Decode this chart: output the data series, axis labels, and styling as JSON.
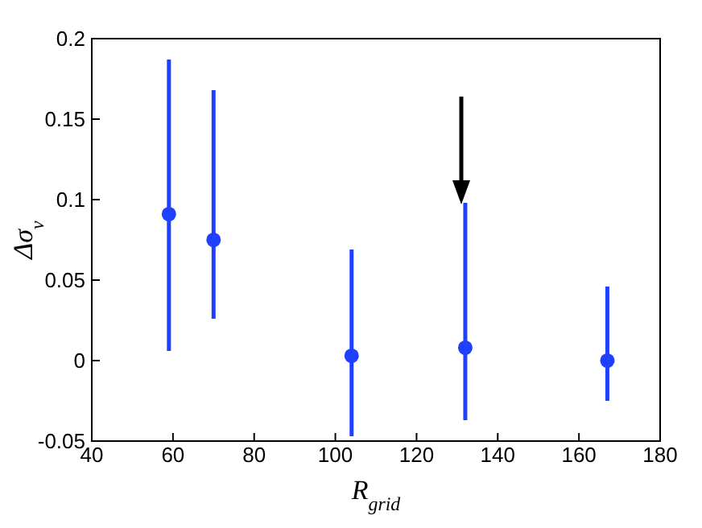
{
  "chart_data": {
    "type": "scatter",
    "xlabel": "R$_{grid}$",
    "ylabel": "Δσ$_{v}$",
    "x": [
      59,
      70,
      104,
      132,
      167
    ],
    "series": [
      {
        "color": "#2040ff",
        "values": [
          0.091,
          0.075,
          0.003,
          0.008,
          0.0
        ],
        "errors": [
          [
            0.006,
            0.187
          ],
          [
            0.026,
            0.168
          ],
          [
            -0.047,
            0.069
          ],
          [
            -0.037,
            0.098
          ],
          [
            -0.025,
            0.046
          ]
        ]
      }
    ],
    "xlim": [
      40,
      180
    ],
    "xticks": [
      40,
      60,
      80,
      100,
      120,
      140,
      160,
      180
    ],
    "ylim": [
      -0.05,
      0.2
    ],
    "yticks": [
      -0.05,
      0,
      0.05,
      0.1,
      0.15,
      0.2
    ],
    "marker": "circle"
  }
}
